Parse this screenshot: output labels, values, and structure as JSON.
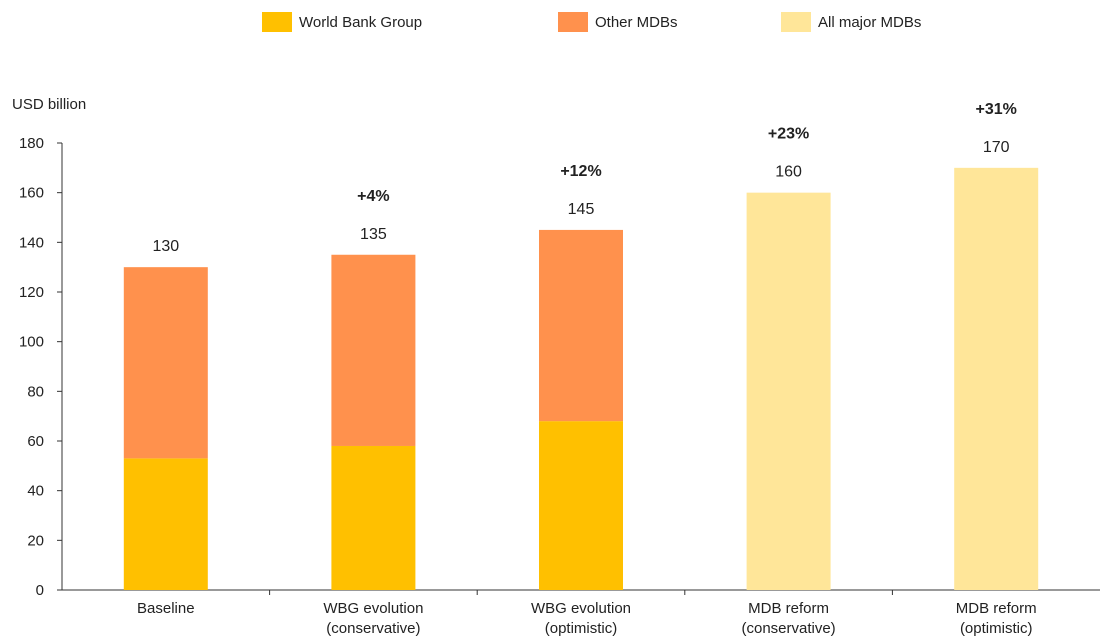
{
  "chart_data": {
    "type": "bar",
    "stacked": true,
    "ylabel": "USD billion",
    "ylim": [
      0,
      180
    ],
    "yticks": [
      0,
      20,
      40,
      60,
      80,
      100,
      120,
      140,
      160,
      180
    ],
    "grid": false,
    "legend_position": "top",
    "categories": [
      [
        "Baseline"
      ],
      [
        "WBG evolution",
        "(conservative)"
      ],
      [
        "WBG evolution",
        "(optimistic)"
      ],
      [
        "MDB reform",
        "(conservative)"
      ],
      [
        "MDB reform",
        "(optimistic)"
      ]
    ],
    "series": [
      {
        "name": "World Bank Group",
        "color": "#FFC000",
        "values": [
          53,
          58,
          68,
          0,
          0
        ]
      },
      {
        "name": "Other MDBs",
        "color": "#FF914D",
        "values": [
          77,
          77,
          77,
          0,
          0
        ]
      },
      {
        "name": "All major MDBs",
        "color": "#FFE699",
        "values": [
          0,
          0,
          0,
          160,
          170
        ]
      }
    ],
    "totals": [
      "130",
      "135",
      "145",
      "160",
      "170"
    ],
    "change_labels": [
      "",
      "+4%",
      "+12%",
      "+23%",
      "+31%"
    ]
  }
}
